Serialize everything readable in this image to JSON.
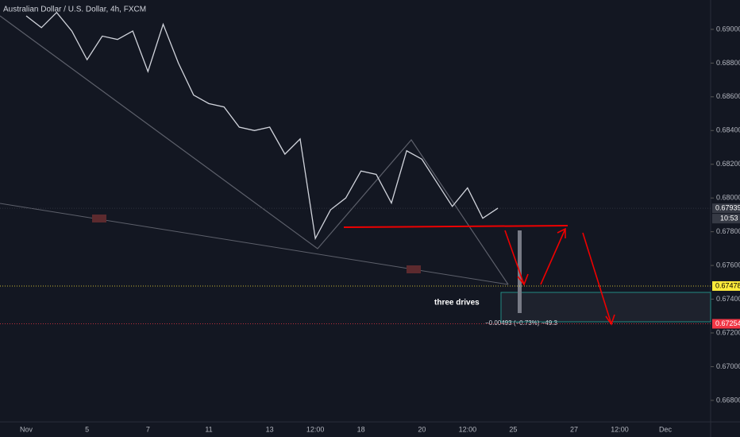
{
  "chart_data": {
    "type": "line",
    "title": "Australian Dollar / U.S. Dollar, 4h, FXCM",
    "categories": [
      "Nov",
      null,
      null,
      null,
      "5",
      null,
      null,
      null,
      "7",
      null,
      null,
      null,
      "11",
      null,
      null,
      null,
      "13",
      null,
      null,
      "12:00",
      null,
      null,
      "18",
      null,
      null,
      null,
      "20",
      null,
      null,
      "12:00",
      null,
      null,
      "25",
      null,
      null,
      null,
      "27",
      null,
      null,
      "12:00",
      null,
      null,
      "Dec"
    ],
    "values": [
      0.6908,
      0.6901,
      0.691,
      0.6899,
      0.6882,
      0.6896,
      0.6894,
      0.6899,
      0.6875,
      0.6903,
      0.688,
      0.6861,
      0.6856,
      0.6854,
      0.6842,
      0.684,
      0.6842,
      0.6826,
      0.6835,
      0.6776,
      0.6793,
      0.68,
      0.6816,
      0.6814,
      0.6797,
      0.6828,
      0.6823,
      0.6809,
      0.6795,
      0.6806,
      0.6788,
      0.6794,
      null,
      null,
      null,
      null,
      null,
      null,
      null,
      null,
      null,
      null,
      null
    ],
    "color": "#d1d4dc",
    "ylim": [
      0.66677,
      0.69174
    ],
    "yticks": [
      {
        "value": 0.668,
        "label": "0.66800"
      },
      {
        "value": 0.67,
        "label": "0.67000"
      },
      {
        "value": 0.672,
        "label": "0.67200"
      },
      {
        "value": 0.674,
        "label": "0.67400"
      },
      {
        "value": 0.676,
        "label": "0.67600"
      },
      {
        "value": 0.678,
        "label": "0.67800"
      },
      {
        "value": 0.68,
        "label": "0.68000"
      },
      {
        "value": 0.682,
        "label": "0.68200"
      },
      {
        "value": 0.684,
        "label": "0.68400"
      },
      {
        "value": 0.686,
        "label": "0.68600"
      },
      {
        "value": 0.688,
        "label": "0.68800"
      },
      {
        "value": 0.69,
        "label": "0.69000"
      }
    ],
    "grid": false,
    "price_markers": [
      {
        "value": 0.67939,
        "label": "0.67939",
        "color": "#363a45"
      },
      {
        "value": 0.67478,
        "label": "0.67478",
        "color": "#ffeb3b"
      },
      {
        "value": 0.67254,
        "label": "0.67254",
        "color": "#f23645"
      }
    ],
    "countdown": "10:53",
    "annotations": [
      "three drives",
      "−0.00493 (−0.73%) −49.3"
    ]
  }
}
